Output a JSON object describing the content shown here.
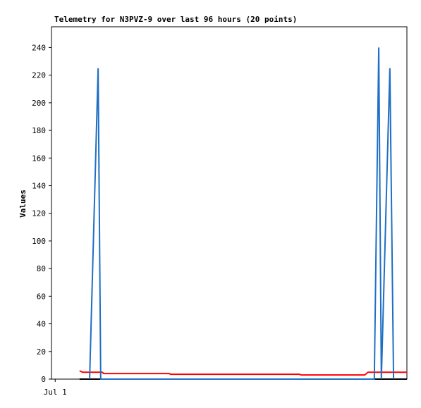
{
  "chart_data": {
    "type": "line",
    "title": "Telemetry for N3PVZ-9 over last 96 hours (20 points)",
    "y_label": "Values",
    "xlim": [
      0,
      96
    ],
    "xticks": [
      {
        "value": 1,
        "label": "Jul 1"
      }
    ],
    "ylim": [
      0,
      255
    ],
    "yticks": [
      0,
      20,
      40,
      60,
      80,
      100,
      120,
      140,
      160,
      180,
      200,
      220,
      240
    ],
    "grid": false,
    "series": [
      {
        "color": "#000000",
        "x": [
          7.6,
          96
        ],
        "values": [
          0,
          0
        ]
      },
      {
        "color": "#ff0000",
        "x": [
          7.6,
          8.4,
          13.7,
          14.1,
          31.8,
          32.2,
          67,
          67.4,
          84.6,
          85.5,
          96
        ],
        "values": [
          6,
          5,
          5,
          4,
          4,
          3.5,
          3.5,
          3,
          3,
          5,
          5
        ]
      },
      {
        "color": "#1f6fc5",
        "x": [
          10.3,
          12.6,
          13.3,
          87.2,
          88.4,
          89.1,
          91.4,
          92.4
        ],
        "values": [
          0,
          225,
          0,
          0,
          240,
          0,
          225,
          0
        ]
      }
    ]
  }
}
